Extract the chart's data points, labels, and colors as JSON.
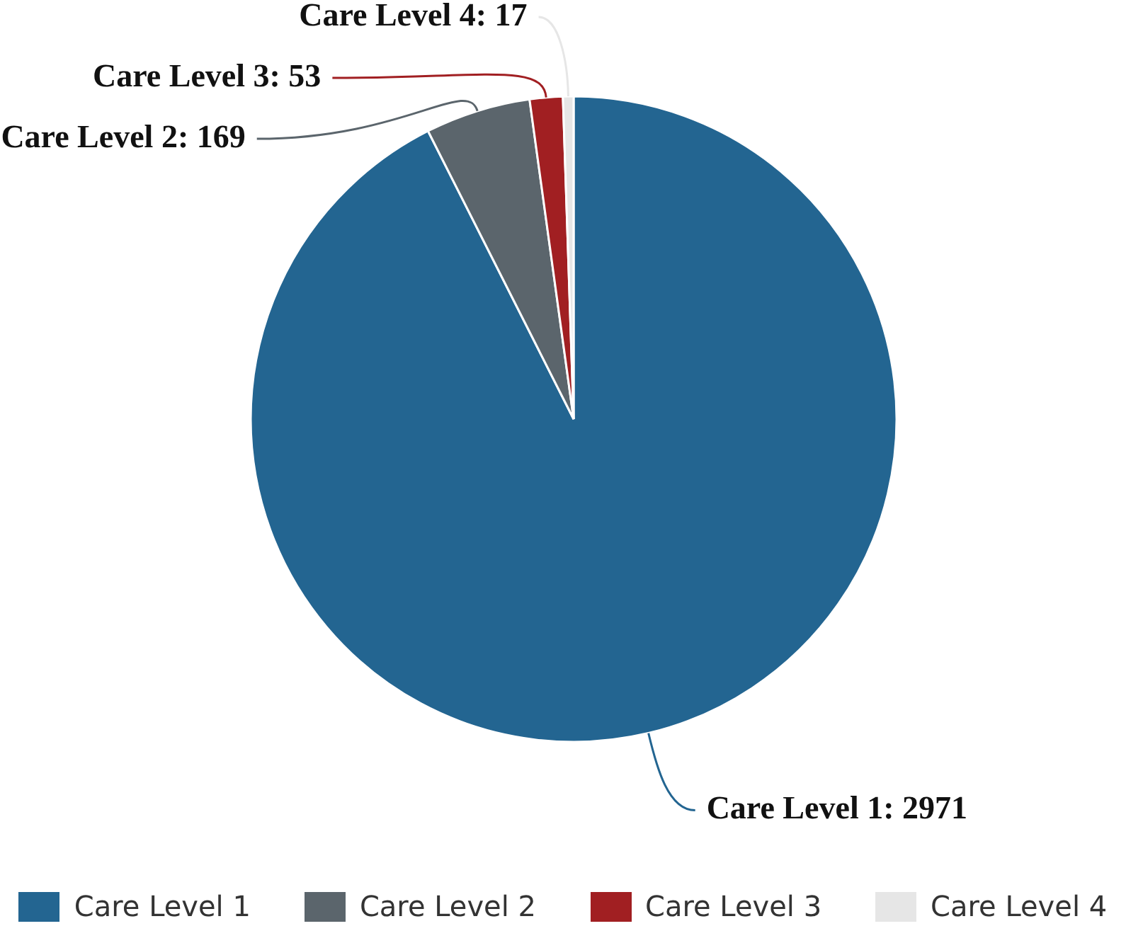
{
  "chart_data": {
    "type": "pie",
    "categories": [
      "Care Level 1",
      "Care Level 2",
      "Care Level 3",
      "Care Level 4"
    ],
    "values": [
      2971,
      169,
      53,
      17
    ],
    "value_labels": [
      "Care Level 1: 2971",
      "Care Level 2: 169",
      "Care Level 3: 53",
      "Care Level 4: 17"
    ],
    "colors": [
      "#236591",
      "#5b656c",
      "#a11f22",
      "#e6e6e6"
    ],
    "legend": "bottom"
  }
}
